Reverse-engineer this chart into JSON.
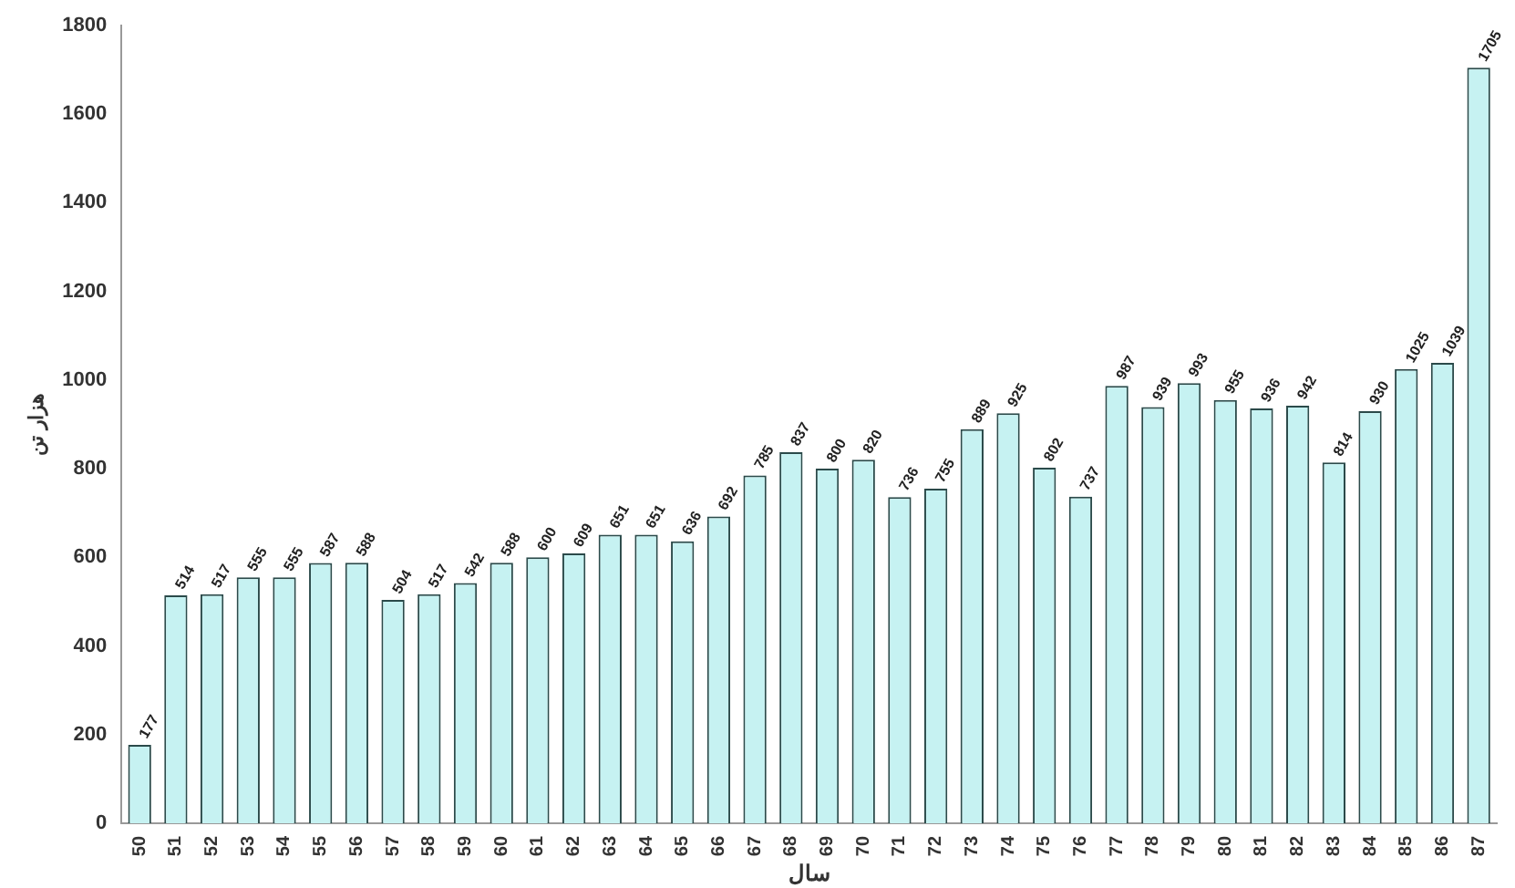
{
  "chart_data": {
    "type": "bar",
    "xlabel": "سال",
    "ylabel": "هزار تن",
    "categories": [
      "50",
      "51",
      "52",
      "53",
      "54",
      "55",
      "56",
      "57",
      "58",
      "59",
      "60",
      "61",
      "62",
      "63",
      "64",
      "65",
      "66",
      "67",
      "68",
      "69",
      "70",
      "71",
      "72",
      "73",
      "74",
      "75",
      "76",
      "77",
      "78",
      "79",
      "80",
      "81",
      "82",
      "83",
      "84",
      "85",
      "86",
      "87"
    ],
    "values": [
      177,
      514,
      517,
      555,
      555,
      587,
      588,
      504,
      517,
      542,
      588,
      600,
      609,
      651,
      651,
      636,
      692,
      785,
      837,
      800,
      820,
      736,
      755,
      889,
      925,
      802,
      737,
      987,
      939,
      993,
      955,
      936,
      942,
      814,
      930,
      1025,
      1039,
      1705
    ],
    "color": "#c6f2f2",
    "ylim": [
      0,
      1800
    ],
    "yticks": [
      0,
      200,
      400,
      600,
      800,
      1000,
      1200,
      1400,
      1600,
      1800
    ],
    "grid": false,
    "legend": false,
    "data_labels": true
  }
}
